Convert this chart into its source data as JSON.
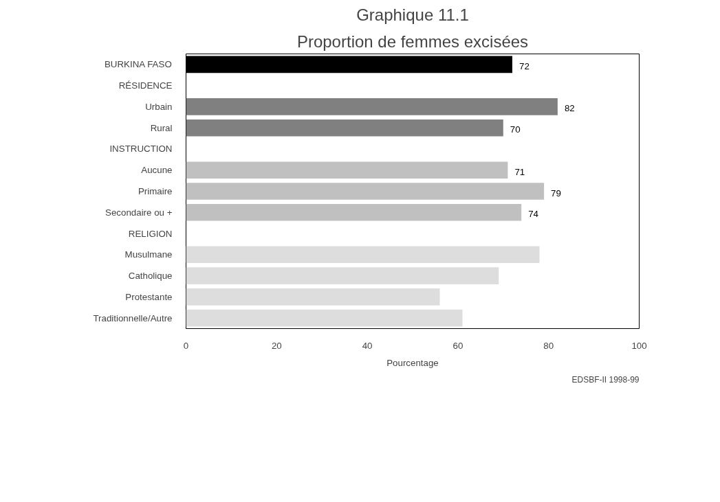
{
  "chart_data": {
    "type": "bar",
    "orientation": "horizontal",
    "title": "Graphique 11.1",
    "subtitle": "Proportion de femmes excisées",
    "xlabel": "Pourcentage",
    "categories": [
      "BURKINA FASO",
      "RÉSIDENCE",
      "Urbain",
      "Rural",
      "INSTRUCTION",
      "Aucune",
      "Primaire",
      "Secondaire ou +",
      "RELIGION",
      "Musulmane",
      "Catholique",
      "Protestante",
      "Traditionnelle/Autre"
    ],
    "values": [
      72,
      null,
      82,
      70,
      null,
      71,
      79,
      74,
      null,
      78,
      69,
      56,
      61
    ],
    "colors": [
      "#000000",
      null,
      "#808080",
      "#808080",
      null,
      "#c0c0c0",
      "#c0c0c0",
      "#c0c0c0",
      null,
      "#dddddd",
      "#dddddd",
      "#dddddd",
      "#dddddd"
    ],
    "value_labels": [
      "72",
      null,
      "82",
      "70",
      null,
      "71",
      "79",
      "74",
      null,
      null,
      null,
      null,
      null
    ],
    "xlim": [
      0,
      100
    ],
    "xticks": [
      0,
      20,
      40,
      60,
      80,
      100
    ],
    "grid": false,
    "annotations": [
      "EDSBF-II 1998-99"
    ]
  }
}
